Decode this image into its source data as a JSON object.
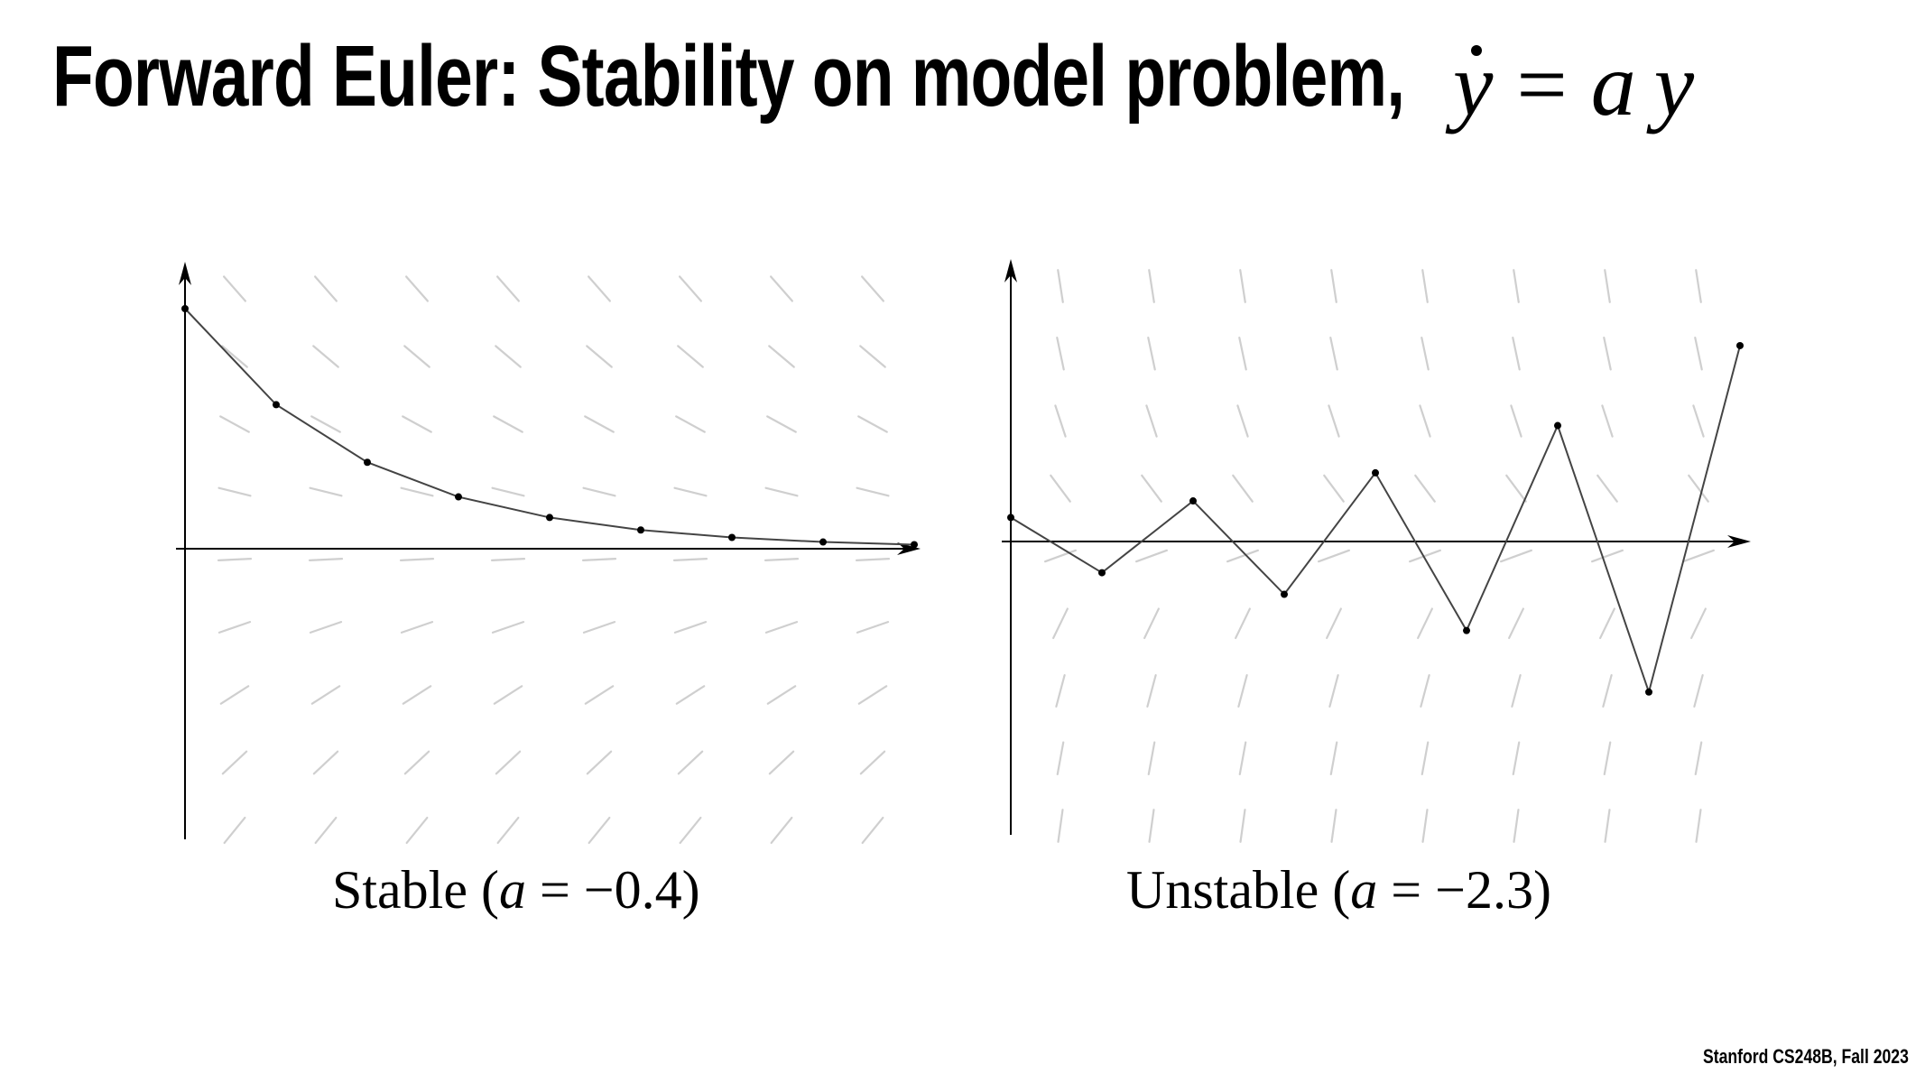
{
  "header": {
    "title": "Forward Euler: Stability on model problem,",
    "equation": {
      "lhs": "y",
      "op": "=",
      "rhs_a": "a",
      "rhs_y": "y"
    }
  },
  "footer": {
    "credit": "Stanford CS248B, Fall 2023"
  },
  "colors": {
    "line": "#444444",
    "field": "#cfcfcf",
    "axis": "#000000"
  },
  "chart_data": [
    {
      "type": "line",
      "caption": {
        "text": "Stable (",
        "var": "a",
        "rest": " = −0.4)"
      },
      "a": -0.4,
      "x": [
        0,
        1,
        2,
        3,
        4,
        5,
        6,
        7,
        8
      ],
      "y": [
        1.0,
        0.6,
        0.36,
        0.216,
        0.13,
        0.078,
        0.047,
        0.028,
        0.017
      ],
      "direction_field": true,
      "grid": false
    },
    {
      "type": "line",
      "caption": {
        "text": "Unstable (",
        "var": "a",
        "rest": " = −2.3)"
      },
      "a": -2.3,
      "x": [
        0,
        1,
        2,
        3,
        4,
        5,
        6,
        7,
        8
      ],
      "y": [
        1.0,
        -1.3,
        1.69,
        -2.2,
        2.86,
        -3.71,
        4.83,
        -6.27,
        8.16
      ],
      "direction_field": true,
      "grid": false
    }
  ]
}
